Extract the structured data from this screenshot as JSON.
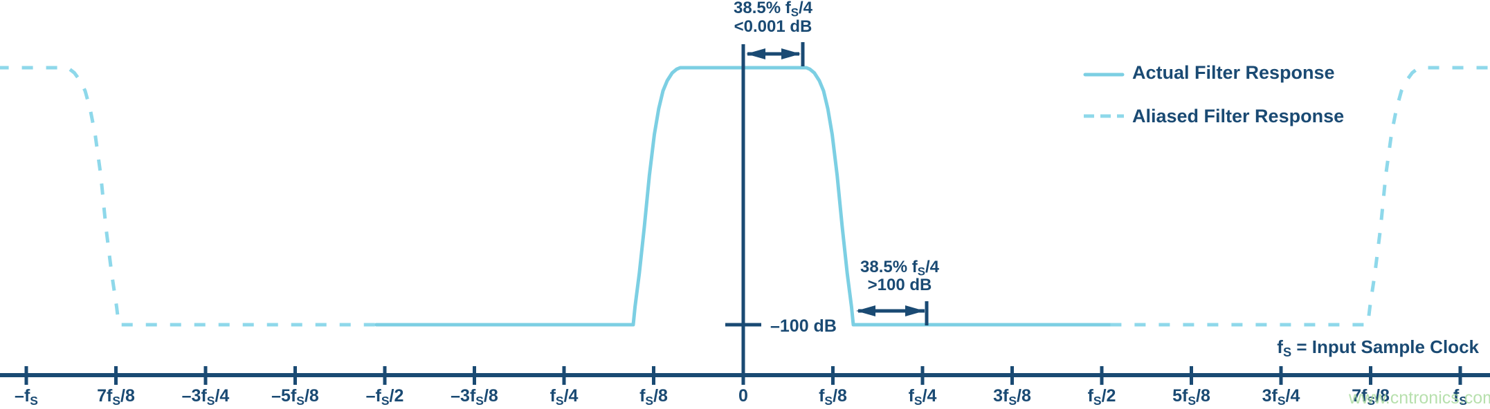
{
  "colors": {
    "navy": "#1a4a73",
    "cyan": "#7ccfe3",
    "cyan_dashed": "#8ed8ea",
    "watermark_green": "#abdb9f",
    "background": "#ffffff"
  },
  "legend": {
    "items": [
      {
        "label": "Actual Filter Response",
        "style": "solid"
      },
      {
        "label": "Aliased Filter Response",
        "style": "dashed"
      }
    ]
  },
  "annotations": {
    "passband": {
      "line1": "38.5% f_S/4",
      "line2": "<0.001 dB"
    },
    "stopband": {
      "line1": "38.5% f_S/4",
      "line2": ">100 dB"
    },
    "attenuation_level": "–100 dB",
    "sample_clock_note": "f_S = Input Sample Clock",
    "watermark": "www.cntronics.com"
  },
  "chart_data": {
    "type": "line",
    "x_unit": "f_S",
    "y_unit": "dB",
    "xlim": [
      -1.04,
      1.04
    ],
    "ylim_db": [
      -100,
      0
    ],
    "grid": false,
    "legend_position": "top-right",
    "y_levels": [
      {
        "db": 0,
        "meaning": "passband, <0.001 dB ripple over 38.5% of f_S/4"
      },
      {
        "db": -100,
        "label": "–100 dB",
        "meaning": "stopband, >100 dB attenuation beyond 38.5% of f_S/4"
      }
    ],
    "x_ticks": [
      {
        "pos": -1.0,
        "label": "–f_S"
      },
      {
        "pos": -0.875,
        "label": "7f_S/8"
      },
      {
        "pos": -0.75,
        "label": "–3f_S/4"
      },
      {
        "pos": -0.625,
        "label": "–5f_S/8"
      },
      {
        "pos": -0.5,
        "label": "–f_S/2"
      },
      {
        "pos": -0.375,
        "label": "–3f_S/8"
      },
      {
        "pos": -0.25,
        "label": "f_S/4"
      },
      {
        "pos": -0.125,
        "label": "f_S/8"
      },
      {
        "pos": 0.0,
        "label": "0"
      },
      {
        "pos": 0.125,
        "label": "f_S/8"
      },
      {
        "pos": 0.25,
        "label": "f_S/4"
      },
      {
        "pos": 0.375,
        "label": "3f_S/8"
      },
      {
        "pos": 0.5,
        "label": "f_S/2"
      },
      {
        "pos": 0.625,
        "label": "5f_S/8"
      },
      {
        "pos": 0.75,
        "label": "3f_S/4"
      },
      {
        "pos": 0.875,
        "label": "7f_S/8"
      },
      {
        "pos": 1.0,
        "label": "f_S"
      }
    ],
    "series": [
      {
        "name": "Actual Filter Response",
        "style": "solid",
        "segments": [
          [
            [
              -0.512,
              -100
            ],
            [
              -0.1535,
              -100
            ],
            [
              -0.151,
              -93
            ],
            [
              -0.145,
              -80
            ],
            [
              -0.138,
              -62
            ],
            [
              -0.131,
              -42
            ],
            [
              -0.124,
              -26
            ],
            [
              -0.118,
              -16
            ],
            [
              -0.112,
              -9
            ],
            [
              -0.106,
              -5
            ],
            [
              -0.099,
              -2
            ],
            [
              -0.093,
              -0.6
            ],
            [
              -0.088,
              0
            ],
            [
              0.088,
              0
            ],
            [
              0.093,
              -0.6
            ],
            [
              0.099,
              -2
            ],
            [
              0.106,
              -5
            ],
            [
              0.112,
              -9
            ],
            [
              0.118,
              -16
            ],
            [
              0.124,
              -26
            ],
            [
              0.131,
              -42
            ],
            [
              0.138,
              -62
            ],
            [
              0.145,
              -80
            ],
            [
              0.151,
              -93
            ],
            [
              0.1535,
              -100
            ],
            [
              0.512,
              -100
            ]
          ]
        ]
      },
      {
        "name": "Aliased Filter Response",
        "style": "dashed",
        "segments": [
          [
            [
              -1.04,
              0
            ],
            [
              -0.945,
              0
            ],
            [
              -0.9395,
              -0.6
            ],
            [
              -0.933,
              -2
            ],
            [
              -0.925,
              -5
            ],
            [
              -0.918,
              -9
            ],
            [
              -0.911,
              -16
            ],
            [
              -0.904,
              -26
            ],
            [
              -0.896,
              -42
            ],
            [
              -0.889,
              -62
            ],
            [
              -0.881,
              -80
            ],
            [
              -0.874,
              -93
            ],
            [
              -0.871,
              -100
            ],
            [
              -0.512,
              -100
            ]
          ],
          [
            [
              0.512,
              -100
            ],
            [
              0.871,
              -100
            ],
            [
              0.874,
              -93
            ],
            [
              0.881,
              -80
            ],
            [
              0.889,
              -62
            ],
            [
              0.896,
              -42
            ],
            [
              0.904,
              -26
            ],
            [
              0.911,
              -16
            ],
            [
              0.918,
              -9
            ],
            [
              0.925,
              -5
            ],
            [
              0.933,
              -2
            ],
            [
              0.9395,
              -0.6
            ],
            [
              0.945,
              0
            ],
            [
              1.04,
              0
            ]
          ]
        ]
      }
    ]
  }
}
